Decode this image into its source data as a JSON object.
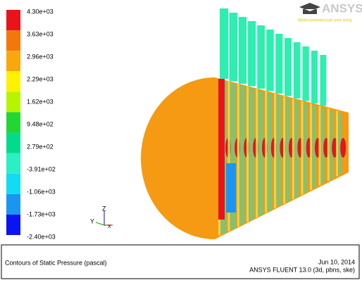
{
  "colorbar": {
    "labels": [
      "4.30e+03",
      "3.63e+03",
      "2.96e+03",
      "2.29e+03",
      "1.62e+03",
      "9.48e+02",
      "2.79e+02",
      "-3.91e+02",
      "-1.06e+03",
      "-1.73e+03",
      "-2.40e+03"
    ],
    "colors": [
      "#e8141a",
      "#f3780c",
      "#f8a80e",
      "#fff200",
      "#b6f500",
      "#22d633",
      "#00dc8c",
      "#2cefc4",
      "#10dcf5",
      "#1a96f0",
      "#0a14f0"
    ]
  },
  "logo": {
    "brand": "ANSYS",
    "note": "Noncommercial use only"
  },
  "axes": {
    "labels": [
      "Z",
      "Y",
      "X"
    ]
  },
  "footer": {
    "title": "Contours of Static Pressure (pascal)",
    "date": "Jun 10, 2014",
    "software": "ANSYS FLUENT 13.0 (3d, pbns, ske)"
  }
}
